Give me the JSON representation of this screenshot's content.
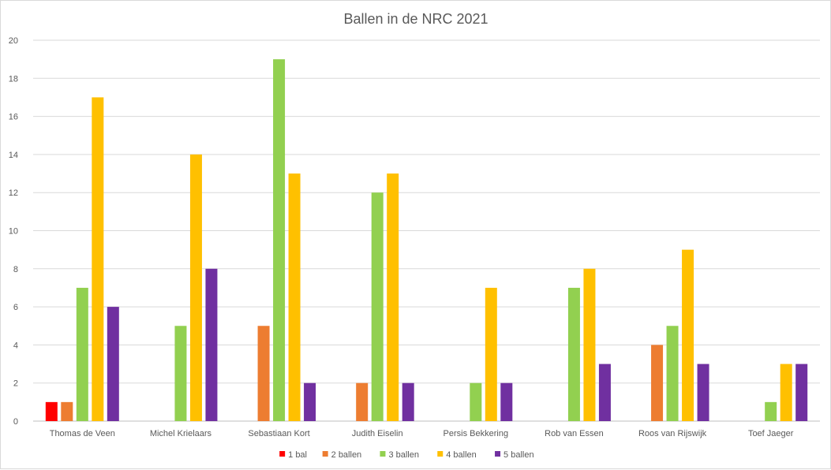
{
  "chart_data": {
    "type": "bar",
    "title": "Ballen in de NRC 2021",
    "xlabel": "",
    "ylabel": "",
    "ylim": [
      0,
      20
    ],
    "yticks": [
      0,
      2,
      4,
      6,
      8,
      10,
      12,
      14,
      16,
      18,
      20
    ],
    "grid": true,
    "legend_position": "bottom",
    "categories": [
      "Thomas de Veen",
      "Michel Krielaars",
      "Sebastiaan Kort",
      "Judith Eiselin",
      "Persis Bekkering",
      "Rob van Essen",
      "Roos van Rijswijk",
      "Toef Jaeger"
    ],
    "series": [
      {
        "name": "1 bal",
        "color": "#ff0000",
        "values": [
          1,
          0,
          0,
          0,
          0,
          0,
          0,
          0
        ]
      },
      {
        "name": "2 ballen",
        "color": "#ed7d31",
        "values": [
          1,
          0,
          5,
          2,
          0,
          0,
          4,
          0
        ]
      },
      {
        "name": "3 ballen",
        "color": "#92d050",
        "values": [
          7,
          5,
          19,
          12,
          2,
          7,
          5,
          1
        ]
      },
      {
        "name": "4 ballen",
        "color": "#ffc000",
        "values": [
          17,
          14,
          13,
          13,
          7,
          8,
          9,
          3
        ]
      },
      {
        "name": "5 ballen",
        "color": "#7030a0",
        "values": [
          6,
          8,
          2,
          2,
          2,
          3,
          3,
          3
        ]
      }
    ]
  }
}
